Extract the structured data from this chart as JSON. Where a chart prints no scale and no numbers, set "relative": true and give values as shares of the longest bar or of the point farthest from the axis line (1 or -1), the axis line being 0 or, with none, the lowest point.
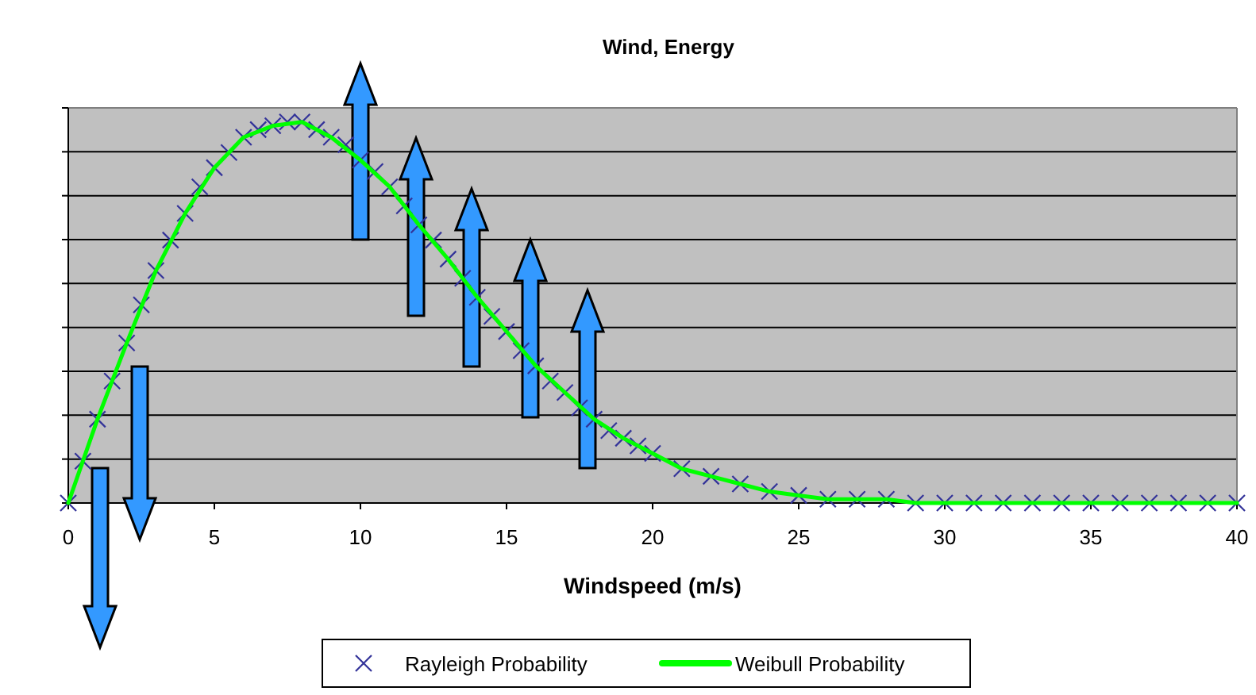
{
  "chart_data": {
    "type": "line",
    "title": "Wind, Energy",
    "xlabel": "Windspeed (m/s)",
    "relative": true,
    "xlim": [
      0,
      40
    ],
    "xticks": [
      0,
      5,
      10,
      15,
      20,
      25,
      30,
      35,
      40
    ],
    "grid": "y",
    "legend": "bottom",
    "series": [
      {
        "name": "Rayleigh Probability",
        "type": "scatter",
        "marker": "cross",
        "color": "#333399",
        "x": [
          0,
          0.5,
          1,
          1.5,
          2,
          2.5,
          3,
          3.5,
          4,
          4.5,
          5,
          5.5,
          6,
          6.5,
          7,
          7.5,
          8,
          8.5,
          9,
          9.5,
          10,
          10.5,
          11,
          11.5,
          12,
          12.5,
          13,
          13.5,
          14,
          14.5,
          15,
          15.5,
          16,
          16.5,
          17,
          17.5,
          18,
          18.5,
          19,
          19.5,
          20,
          21,
          22,
          23,
          24,
          25,
          26,
          27,
          28,
          29,
          30,
          31,
          32,
          33,
          34,
          35,
          36,
          37,
          38,
          39,
          40
        ],
        "values": [
          0,
          0.11,
          0.22,
          0.32,
          0.42,
          0.52,
          0.61,
          0.69,
          0.76,
          0.83,
          0.88,
          0.92,
          0.96,
          0.98,
          0.99,
          1,
          1,
          0.98,
          0.96,
          0.94,
          0.9,
          0.87,
          0.83,
          0.78,
          0.73,
          0.69,
          0.64,
          0.59,
          0.54,
          0.49,
          0.45,
          0.4,
          0.36,
          0.32,
          0.29,
          0.25,
          0.22,
          0.19,
          0.17,
          0.15,
          0.13,
          0.09,
          0.07,
          0.05,
          0.03,
          0.02,
          0.01,
          0.01,
          0.01,
          0,
          0,
          0,
          0,
          0,
          0,
          0,
          0,
          0,
          0,
          0,
          0
        ]
      },
      {
        "name": "Weibull Probability",
        "marker": "none",
        "color": "#00ff00",
        "x": [
          0,
          1,
          2,
          3,
          4,
          5,
          6,
          7,
          8,
          9,
          10,
          11,
          12,
          13,
          14,
          15,
          16,
          17,
          18,
          19,
          20,
          21,
          22,
          23,
          24,
          25,
          26,
          27,
          28,
          29,
          30,
          31,
          32,
          33,
          34,
          35,
          36,
          37,
          38,
          39,
          40
        ],
        "values": [
          0,
          0.22,
          0.42,
          0.61,
          0.76,
          0.88,
          0.96,
          0.99,
          1,
          0.96,
          0.9,
          0.83,
          0.73,
          0.64,
          0.54,
          0.45,
          0.36,
          0.29,
          0.22,
          0.17,
          0.13,
          0.09,
          0.07,
          0.05,
          0.03,
          0.02,
          0.01,
          0.01,
          0.01,
          0,
          0,
          0,
          0,
          0,
          0,
          0,
          0,
          0,
          0,
          0,
          0
        ]
      }
    ]
  }
}
